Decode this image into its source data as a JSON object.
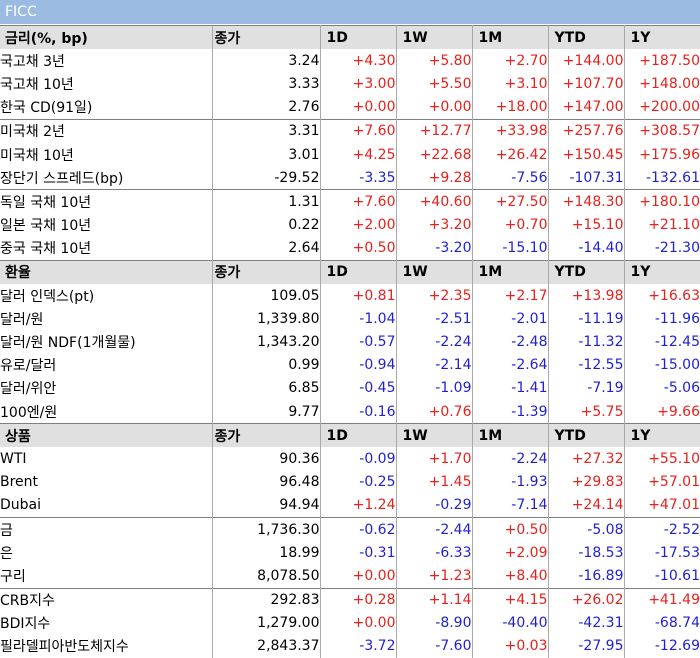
{
  "title": "FICC",
  "colors": {
    "header_bg": "#e0e0e0",
    "title_bg": "#9bbbe3",
    "positive": "#e8211c",
    "negative": "#1f1fd4"
  },
  "sections": [
    {
      "header": {
        "label": "금리(%, bp)",
        "close": "종가",
        "periods": [
          "1D",
          "1W",
          "1M",
          "YTD",
          "1Y"
        ]
      },
      "groups": [
        [
          {
            "name": "국고채 3년",
            "close": "3.24",
            "changes": [
              "+4.30",
              "+5.80",
              "+2.70",
              "+144.00",
              "+187.50"
            ]
          },
          {
            "name": "국고채 10년",
            "close": "3.33",
            "changes": [
              "+3.00",
              "+5.50",
              "+3.10",
              "+107.70",
              "+148.00"
            ]
          },
          {
            "name": "한국 CD(91일)",
            "close": "2.76",
            "changes": [
              "+0.00",
              "+0.00",
              "+18.00",
              "+147.00",
              "+200.00"
            ]
          }
        ],
        [
          {
            "name": "미국채 2년",
            "close": "3.31",
            "changes": [
              "+7.60",
              "+12.77",
              "+33.98",
              "+257.76",
              "+308.57"
            ]
          },
          {
            "name": "미국채 10년",
            "close": "3.01",
            "changes": [
              "+4.25",
              "+22.68",
              "+26.42",
              "+150.45",
              "+175.96"
            ]
          },
          {
            "name": "장단기 스프레드(bp)",
            "close": "-29.52",
            "changes": [
              "-3.35",
              "+9.28",
              "-7.56",
              "-107.31",
              "-132.61"
            ]
          }
        ],
        [
          {
            "name": "독일 국채 10년",
            "close": "1.31",
            "changes": [
              "+7.60",
              "+40.60",
              "+27.50",
              "+148.30",
              "+180.10"
            ]
          },
          {
            "name": "일본 국채 10년",
            "close": "0.22",
            "changes": [
              "+2.00",
              "+3.20",
              "+0.70",
              "+15.10",
              "+21.10"
            ]
          },
          {
            "name": "중국 국채 10년",
            "close": "2.64",
            "changes": [
              "+0.50",
              "-3.20",
              "-15.10",
              "-14.40",
              "-21.30"
            ]
          }
        ]
      ]
    },
    {
      "header": {
        "label": "환율",
        "close": "종가",
        "periods": [
          "1D",
          "1W",
          "1M",
          "YTD",
          "1Y"
        ]
      },
      "groups": [
        [
          {
            "name": "달러 인덱스(pt)",
            "close": "109.05",
            "changes": [
              "+0.81",
              "+2.35",
              "+2.17",
              "+13.98",
              "+16.63"
            ]
          },
          {
            "name": "달러/원",
            "close": "1,339.80",
            "changes": [
              "-1.04",
              "-2.51",
              "-2.01",
              "-11.19",
              "-11.96"
            ]
          },
          {
            "name": "달러/원 NDF(1개월물)",
            "close": "1,343.20",
            "changes": [
              "-0.57",
              "-2.24",
              "-2.48",
              "-11.32",
              "-12.45"
            ]
          },
          {
            "name": "유로/달러",
            "close": "0.99",
            "changes": [
              "-0.94",
              "-2.14",
              "-2.64",
              "-12.55",
              "-15.00"
            ]
          },
          {
            "name": "달러/위안",
            "close": "6.85",
            "changes": [
              "-0.45",
              "-1.09",
              "-1.41",
              "-7.19",
              "-5.06"
            ]
          },
          {
            "name": "100엔/원",
            "close": "9.77",
            "changes": [
              "-0.16",
              "+0.76",
              "-1.39",
              "+5.75",
              "+9.66"
            ]
          }
        ]
      ]
    },
    {
      "header": {
        "label": "상품",
        "close": "종가",
        "periods": [
          "1D",
          "1W",
          "1M",
          "YTD",
          "1Y"
        ]
      },
      "groups": [
        [
          {
            "name": "WTI",
            "close": "90.36",
            "changes": [
              "-0.09",
              "+1.70",
              "-2.24",
              "+27.32",
              "+55.10"
            ]
          },
          {
            "name": "Brent",
            "close": "96.48",
            "changes": [
              "-0.25",
              "+1.45",
              "-1.93",
              "+29.83",
              "+57.01"
            ]
          },
          {
            "name": "Dubai",
            "close": "94.94",
            "changes": [
              "+1.24",
              "-0.29",
              "-7.14",
              "+24.14",
              "+47.01"
            ]
          }
        ],
        [
          {
            "name": "금",
            "close": "1,736.30",
            "changes": [
              "-0.62",
              "-2.44",
              "+0.50",
              "-5.08",
              "-2.52"
            ]
          },
          {
            "name": "은",
            "close": "18.99",
            "changes": [
              "-0.31",
              "-6.33",
              "+2.09",
              "-18.53",
              "-17.53"
            ]
          },
          {
            "name": "구리",
            "close": "8,078.50",
            "changes": [
              "+0.00",
              "+1.23",
              "+8.40",
              "-16.89",
              "-10.61"
            ]
          }
        ],
        [
          {
            "name": "CRB지수",
            "close": "292.83",
            "changes": [
              "+0.28",
              "+1.14",
              "+4.15",
              "+26.02",
              "+41.49"
            ]
          },
          {
            "name": "BDI지수",
            "close": "1,279.00",
            "changes": [
              "+0.00",
              "-8.90",
              "-40.40",
              "-42.31",
              "-68.74"
            ]
          },
          {
            "name": "필라델피아반도체지수",
            "close": "2,843.37",
            "changes": [
              "-3.72",
              "-7.60",
              "+0.03",
              "-27.95",
              "-12.69"
            ]
          }
        ]
      ]
    }
  ]
}
